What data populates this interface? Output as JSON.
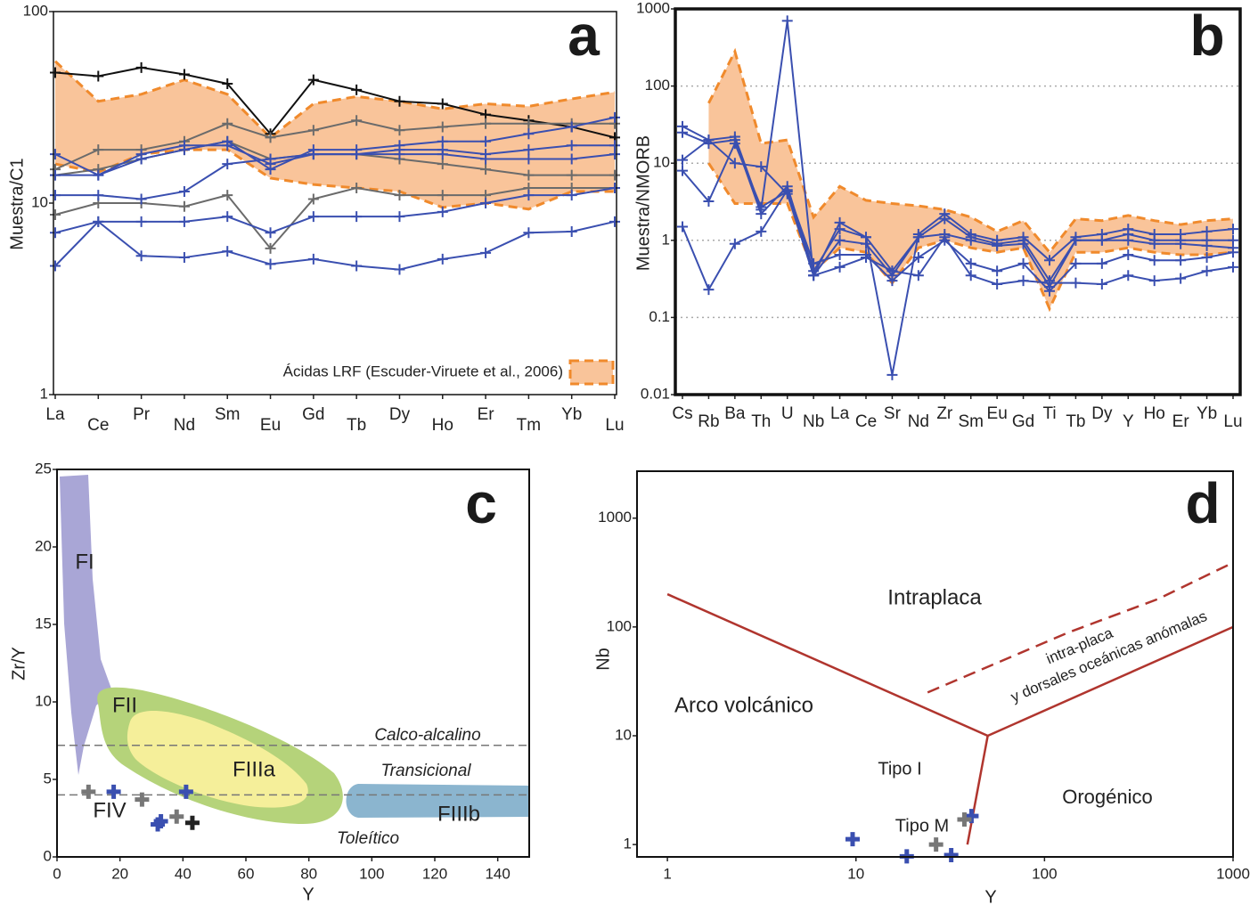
{
  "chart_data": [
    {
      "type": "line",
      "panel_label": "a",
      "ylabel": "Muestra/C1",
      "log_y": true,
      "ylim": [
        1,
        100
      ],
      "yticks": [
        1,
        10,
        100
      ],
      "categories": [
        "La",
        "Ce",
        "Pr",
        "Nd",
        "Sm",
        "Eu",
        "Gd",
        "Tb",
        "Dy",
        "Ho",
        "Er",
        "Tm",
        "Yb",
        "Lu"
      ],
      "band": {
        "name": "Ácidas LRF (Escuder-Viruete et al., 2006)",
        "color": "#f9c49a",
        "edge_color": "#f08a2c",
        "upper": [
          55,
          34,
          37,
          44,
          37,
          22,
          33,
          36,
          34,
          31,
          33,
          32,
          35,
          38
        ],
        "lower": [
          16,
          14.5,
          18,
          19,
          19,
          13.5,
          12.5,
          12,
          11.5,
          9.5,
          10,
          9.3,
          11.5,
          11.5
        ]
      },
      "series": [
        {
          "color": "#111111",
          "values": [
            48,
            46,
            51,
            47,
            42,
            23,
            44,
            39,
            34,
            33,
            29,
            27,
            25,
            22
          ]
        },
        {
          "color": "#6b6b6b",
          "values": [
            15,
            19,
            19,
            21,
            26,
            22,
            24,
            27,
            24,
            25,
            26,
            26,
            26,
            26
          ]
        },
        {
          "color": "#6b6b6b",
          "values": [
            8.7,
            10,
            10,
            9.6,
            11,
            5.8,
            10.5,
            12,
            11,
            11,
            11,
            12,
            12,
            12
          ]
        },
        {
          "color": "#6b6b6b",
          "values": [
            14,
            15,
            17,
            19,
            21,
            17,
            18,
            18,
            17,
            16,
            15,
            14,
            14,
            14
          ]
        },
        {
          "color": "#3a4fb0",
          "values": [
            18,
            14,
            17,
            19,
            21,
            15,
            19,
            19,
            20,
            21,
            21,
            23,
            25,
            28
          ]
        },
        {
          "color": "#3a4fb0",
          "values": [
            14,
            14,
            18,
            20,
            20,
            16,
            18,
            18,
            18,
            18,
            17,
            17,
            17,
            18
          ]
        },
        {
          "color": "#3a4fb0",
          "values": [
            11,
            11,
            10.5,
            11.5,
            16,
            17,
            18,
            18,
            19,
            19,
            18,
            19,
            20,
            20
          ]
        },
        {
          "color": "#3a4fb0",
          "values": [
            7,
            8,
            8,
            8,
            8.5,
            7,
            8.5,
            8.5,
            8.5,
            9,
            10,
            11,
            11,
            12
          ]
        },
        {
          "color": "#3a4fb0",
          "values": [
            4.7,
            8,
            5.3,
            5.2,
            5.6,
            4.8,
            5.1,
            4.7,
            4.5,
            5.1,
            5.5,
            7,
            7.1,
            8
          ]
        }
      ]
    },
    {
      "type": "line",
      "panel_label": "b",
      "ylabel": "Muestra/NMORB",
      "log_y": true,
      "grid": true,
      "ylim": [
        0.01,
        1000
      ],
      "yticks": [
        0.01,
        0.1,
        1,
        10,
        100,
        1000
      ],
      "categories": [
        "Cs",
        "Rb",
        "Ba",
        "Th",
        "U",
        "Nb",
        "La",
        "Ce",
        "Sr",
        "Nd",
        "Zr",
        "Sm",
        "Eu",
        "Gd",
        "Ti",
        "Tb",
        "Dy",
        "Y",
        "Ho",
        "Er",
        "Yb",
        "Lu"
      ],
      "band": {
        "color": "#f9c49a",
        "edge_color": "#f08a2c",
        "upper": [
          null,
          60,
          280,
          18,
          20,
          2,
          5,
          3.3,
          3,
          2.8,
          2.5,
          2,
          1.3,
          1.8,
          0.7,
          1.9,
          1.8,
          2.1,
          1.8,
          1.6,
          1.8,
          1.9
        ],
        "lower": [
          null,
          10,
          3,
          3,
          3,
          0.4,
          0.8,
          0.7,
          0.28,
          0.8,
          1.0,
          0.8,
          0.7,
          0.8,
          0.13,
          0.7,
          0.7,
          0.8,
          0.7,
          0.65,
          0.65,
          0.7
        ]
      },
      "series": [
        {
          "color": "#3a4fb0",
          "values": [
            30,
            20,
            22,
            2.5,
            700,
            0.35,
            1.7,
            1.1,
            0.018,
            1.2,
            2.2,
            1.2,
            1,
            1.1,
            0.55,
            1.1,
            1.2,
            1.4,
            1.2,
            1.2,
            1.3,
            1.4
          ]
        },
        {
          "color": "#3a4fb0",
          "values": [
            25,
            18,
            20,
            2.2,
            5,
            0.4,
            1.4,
            1.1,
            0.4,
            1.1,
            1.9,
            1.1,
            0.9,
            1.0,
            0.3,
            1.0,
            1.0,
            1.2,
            1.0,
            1.0,
            1.0,
            1.0
          ]
        },
        {
          "color": "#3a4fb0",
          "values": [
            11,
            20,
            10,
            9,
            4,
            0.35,
            1,
            0.9,
            0.35,
            1.1,
            1.2,
            1.0,
            0.85,
            0.9,
            0.25,
            1.0,
            1.0,
            1.0,
            0.9,
            0.9,
            0.85,
            0.8
          ]
        },
        {
          "color": "#3a4fb0",
          "values": [
            1.5,
            0.23,
            0.9,
            1.3,
            4.5,
            0.5,
            0.65,
            0.65,
            0.3,
            0.6,
            1.0,
            0.5,
            0.4,
            0.5,
            0.22,
            0.5,
            0.5,
            0.65,
            0.55,
            0.55,
            0.6,
            0.7
          ]
        },
        {
          "color": "#3a4fb0",
          "values": [
            8,
            3.2,
            18,
            2.7,
            4.3,
            0.35,
            0.45,
            0.6,
            0.4,
            0.35,
            1.1,
            0.35,
            0.27,
            0.3,
            0.28,
            0.28,
            0.27,
            0.35,
            0.3,
            0.32,
            0.4,
            0.45
          ]
        }
      ]
    },
    {
      "type": "scatter",
      "panel_label": "c",
      "xlabel": "Y",
      "ylabel": "Zr/Y",
      "xlim": [
        0,
        150
      ],
      "ylim": [
        0,
        25
      ],
      "xticks": [
        0,
        20,
        40,
        60,
        80,
        100,
        120,
        140
      ],
      "yticks": [
        0,
        5,
        10,
        15,
        20,
        25
      ],
      "hlines": [
        7.2,
        4.0
      ],
      "field_labels": [
        "FI",
        "FII",
        "FIIIa",
        "FIIIb",
        "FIV"
      ],
      "trend_labels": [
        "Calco-alcalino",
        "Transicional",
        "Toleítico"
      ],
      "series": [
        {
          "color": "#777777",
          "x": [
            10,
            27,
            38
          ],
          "y": [
            4.2,
            3.7,
            2.6
          ]
        },
        {
          "color": "#3a4fb0",
          "x": [
            18,
            32,
            33,
            41
          ],
          "y": [
            4.2,
            2.1,
            2.3,
            4.2
          ]
        },
        {
          "color": "#222222",
          "x": [
            43
          ],
          "y": [
            2.2
          ]
        }
      ]
    },
    {
      "type": "scatter",
      "panel_label": "d",
      "xlabel": "Y",
      "ylabel": "Nb",
      "log_x": true,
      "log_y": true,
      "xlim": [
        0.69,
        1000
      ],
      "ylim": [
        0.77,
        2700
      ],
      "xticks": [
        1,
        10,
        100,
        1000
      ],
      "yticks": [
        1,
        10,
        100,
        1000
      ],
      "boundaries": [
        {
          "color": "#b0352e",
          "dashed": false,
          "x": [
            1,
            50,
            1000
          ],
          "y": [
            200,
            10,
            100
          ]
        },
        {
          "color": "#b0352e",
          "dashed": false,
          "x": [
            50,
            39
          ],
          "y": [
            10,
            1
          ]
        },
        {
          "color": "#b0352e",
          "dashed": true,
          "x": [
            24,
            134,
            398,
            1000
          ],
          "y": [
            25,
            89,
            180,
            390
          ]
        }
      ],
      "region_labels": [
        "Intraplaca",
        "Arco volcánico",
        "Orogénico",
        "Tipo I",
        "Tipo M",
        "intra-placa",
        "y dorsales oceánicas anómalas"
      ],
      "series": [
        {
          "color": "#3a4fb0",
          "x": [
            9.6,
            18.6,
            32,
            41
          ],
          "y": [
            1.12,
            0.78,
            0.8,
            1.83
          ]
        },
        {
          "color": "#777777",
          "x": [
            26.6,
            37.6
          ],
          "y": [
            1.0,
            1.7
          ]
        }
      ]
    }
  ]
}
